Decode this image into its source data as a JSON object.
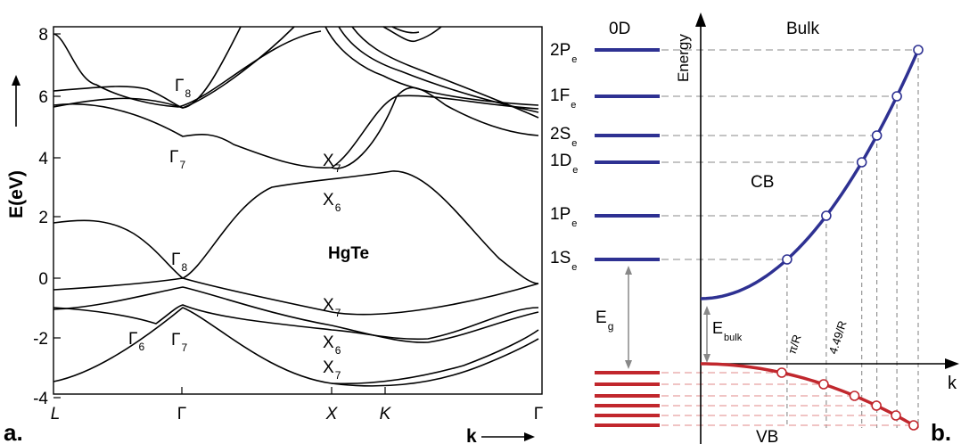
{
  "panel_a": {
    "panel_letter": "a.",
    "material": "HgTe",
    "y_axis_label": "E(eV)",
    "x_axis_label": "k",
    "y_ticks": [
      "8",
      "6",
      "4",
      "2",
      "0",
      "-2",
      "-4"
    ],
    "x_ticks": [
      "L",
      "Γ",
      "X",
      "K",
      "Γ"
    ],
    "point_labels": [
      {
        "main": "Γ",
        "sub": "8"
      },
      {
        "main": "Γ",
        "sub": "7"
      },
      {
        "main": "X",
        "sub": "7"
      },
      {
        "main": "X",
        "sub": "6"
      },
      {
        "main": "Γ",
        "sub": "8"
      },
      {
        "main": "X",
        "sub": "7"
      },
      {
        "main": "Γ",
        "sub": "6"
      },
      {
        "main": "Γ",
        "sub": "7"
      },
      {
        "main": "X",
        "sub": "6"
      },
      {
        "main": "X",
        "sub": "7"
      }
    ],
    "level_labels": [
      {
        "main": "2P",
        "sub": "e"
      },
      {
        "main": "1F",
        "sub": "e"
      },
      {
        "main": "2S",
        "sub": "e"
      },
      {
        "main": "1D",
        "sub": "e"
      },
      {
        "main": "1P",
        "sub": "e"
      },
      {
        "main": "1S",
        "sub": "e"
      }
    ]
  },
  "panel_b": {
    "panel_letter": "b.",
    "title_0d": "0D",
    "title_bulk": "Bulk",
    "energy_axis": "Energy",
    "k_axis": "k",
    "cb_label": "CB",
    "vb_label": "VB",
    "eg_label": {
      "main": "E",
      "sub": "g"
    },
    "ebulk_label": {
      "main": "E",
      "sub": "bulk"
    },
    "k_markers": [
      "π/R",
      "4.49/R"
    ]
  },
  "colors": {
    "conduction": "#2e3192",
    "valence": "#c1272d",
    "guide": "#8a8a8a",
    "curve": "#000000"
  }
}
